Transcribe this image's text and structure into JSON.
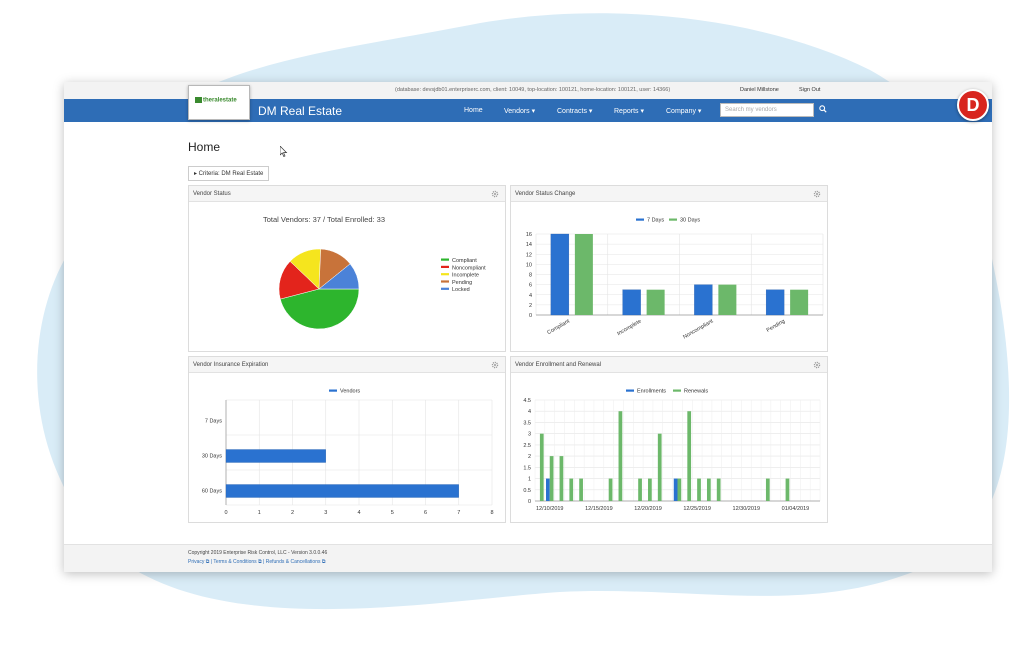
{
  "topbar": {
    "db_info": "(database: devsjdb01.enterpriserc.com, client: 10049, top-location: 100121, home-location: 100121, user: 14366)",
    "user_name": "Daniel Millstone",
    "sign_out": "Sign Out"
  },
  "header": {
    "logo_text": "theralestate",
    "brand": "DM Real Estate",
    "nav": [
      {
        "label": "Home"
      },
      {
        "label": "Vendors ▾"
      },
      {
        "label": "Contracts ▾"
      },
      {
        "label": "Reports ▾"
      },
      {
        "label": "Company ▾"
      }
    ],
    "search_placeholder": "Search my vendors",
    "avatar_letter": "D"
  },
  "page": {
    "title": "Home",
    "criteria": "▸  Criteria: DM Real Estate"
  },
  "panels": {
    "vendor_status": "Vendor Status",
    "vendor_status_change": "Vendor Status Change",
    "insurance_expiration": "Vendor Insurance Expiration",
    "enrollment_renewal": "Vendor Enrollment and Renewal"
  },
  "chart_data": [
    {
      "type": "pie",
      "title": "Total Vendors: 37 / Total Enrolled: 33",
      "legend_position": "right",
      "slices": [
        {
          "label": "Compliant",
          "value": 17,
          "color": "#2db52d"
        },
        {
          "label": "Noncompliant",
          "value": 6,
          "color": "#e3241c"
        },
        {
          "label": "Incomplete",
          "value": 5,
          "color": "#f5e51e"
        },
        {
          "label": "Pending",
          "value": 5,
          "color": "#c8733a"
        },
        {
          "label": "Locked",
          "value": 4,
          "color": "#4b82d8"
        }
      ]
    },
    {
      "type": "bar",
      "legend_position": "top",
      "categories": [
        "Compliant",
        "Incomplete",
        "Noncompliant",
        "Pending"
      ],
      "series": [
        {
          "name": "7 Days",
          "color": "#2a72d0",
          "values": [
            17,
            5,
            6,
            5
          ]
        },
        {
          "name": "30 Days",
          "color": "#6cb86a",
          "values": [
            17,
            5,
            6,
            5
          ]
        }
      ],
      "ylim": [
        0,
        16
      ],
      "yticks": [
        0,
        2,
        4,
        6,
        8,
        10,
        12,
        14,
        16
      ],
      "grid": true
    },
    {
      "type": "bar",
      "orientation": "horizontal",
      "legend_position": "top",
      "categories": [
        "7 Days",
        "30 Days",
        "60 Days"
      ],
      "series": [
        {
          "name": "Vendors",
          "color": "#2a72d0",
          "values": [
            0,
            3,
            7
          ]
        }
      ],
      "xlim": [
        0,
        8
      ],
      "xticks": [
        0,
        1,
        2,
        3,
        4,
        5,
        6,
        7,
        8
      ],
      "grid": true
    },
    {
      "type": "bar",
      "legend_position": "top",
      "x_tick_labels": [
        "12/10/2019",
        "12/15/2019",
        "12/20/2019",
        "12/25/2019",
        "12/30/2019",
        "01/04/2019"
      ],
      "days": [
        "12/09/2019",
        "12/10/2019",
        "12/11/2019",
        "12/12/2019",
        "12/13/2019",
        "12/14/2019",
        "12/15/2019",
        "12/16/2019",
        "12/17/2019",
        "12/18/2019",
        "12/19/2019",
        "12/20/2019",
        "12/21/2019",
        "12/22/2019",
        "12/23/2019",
        "12/24/2019",
        "12/25/2019",
        "12/26/2019",
        "12/27/2019",
        "12/28/2019",
        "12/29/2019",
        "12/30/2019",
        "12/31/2019",
        "01/01/2020",
        "01/02/2020",
        "01/03/2020",
        "01/04/2020",
        "01/05/2020",
        "01/06/2020"
      ],
      "series": [
        {
          "name": "Enrollments",
          "color": "#2a72d0",
          "values": [
            0,
            1,
            0,
            0,
            0,
            0,
            0,
            0,
            0,
            0,
            0,
            0,
            0,
            0,
            1,
            0,
            0,
            0,
            0,
            0,
            0,
            0,
            0,
            0,
            0,
            0,
            0,
            0,
            0
          ]
        },
        {
          "name": "Renewals",
          "color": "#6cb86a",
          "values": [
            3,
            2,
            2,
            1,
            1,
            0,
            0,
            1,
            4,
            0,
            1,
            1,
            3,
            0,
            1,
            4,
            1,
            1,
            1,
            0,
            0,
            0,
            0,
            1,
            0,
            1,
            0,
            0,
            0
          ]
        }
      ],
      "ylim": [
        0,
        4.5
      ],
      "yticks": [
        0,
        0.5,
        1,
        1.5,
        2,
        2.5,
        3,
        3.5,
        4,
        4.5
      ],
      "grid": true
    }
  ],
  "footer": {
    "copyright": "Copyright 2019 Enterprise Risk Control, LLC - Version 3.0.0.46",
    "links": "Privacy ⧉ | Terms & Conditions ⧉ | Refunds & Cancellations ⧉"
  }
}
